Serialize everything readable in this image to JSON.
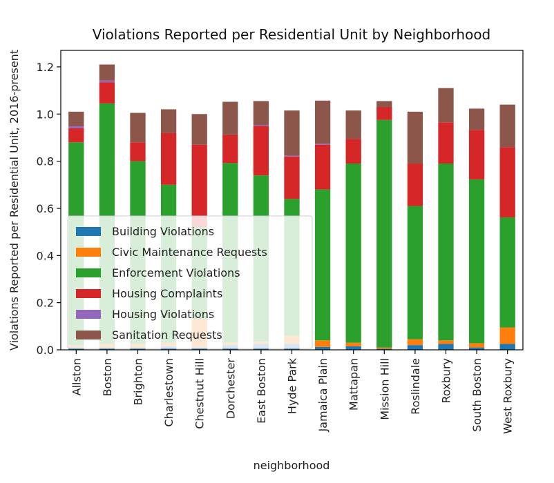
{
  "chart_data": {
    "type": "bar",
    "stacked": true,
    "title": "Violations Reported per Residential Unit by Neighborhood",
    "xlabel": "neighborhood",
    "ylabel": "Violations Reported per Residential Unit, 2016-present",
    "ylim": [
      0,
      1.27
    ],
    "yticks": [
      "0.0",
      "0.2",
      "0.4",
      "0.6",
      "0.8",
      "1.0",
      "1.2"
    ],
    "ytick_values": [
      0,
      0.2,
      0.4,
      0.6,
      0.8,
      1.0,
      1.2
    ],
    "grid": false,
    "legend_position": "lower-left",
    "categories": [
      "Allston",
      "Boston",
      "Brighton",
      "Charlestown",
      "Chestnut Hill",
      "Dorchester",
      "East Boston",
      "Hyde Park",
      "Jamaica Plain",
      "Mattapan",
      "Mission Hill",
      "Roslindale",
      "Roxbury",
      "South Boston",
      "West Roxbury"
    ],
    "series": [
      {
        "name": "Building Violations",
        "color": "#1f77b4",
        "values": [
          0.01,
          0.01,
          0.01,
          0.015,
          0.01,
          0.02,
          0.025,
          0.025,
          0.012,
          0.015,
          0.005,
          0.02,
          0.025,
          0.01,
          0.025
        ]
      },
      {
        "name": "Civic Maintenance Requests",
        "color": "#ff7f0e",
        "values": [
          0.01,
          0.015,
          0.015,
          0.015,
          0.12,
          0.01,
          0.01,
          0.035,
          0.028,
          0.015,
          0.005,
          0.025,
          0.015,
          0.018,
          0.07
        ]
      },
      {
        "name": "Enforcement Violations",
        "color": "#2ca02c",
        "values": [
          0.86,
          1.02,
          0.775,
          0.67,
          0.39,
          0.762,
          0.705,
          0.58,
          0.64,
          0.76,
          0.965,
          0.565,
          0.75,
          0.695,
          0.467
        ]
      },
      {
        "name": "Housing Complaints",
        "color": "#d62728",
        "values": [
          0.06,
          0.09,
          0.08,
          0.22,
          0.35,
          0.12,
          0.21,
          0.18,
          0.19,
          0.105,
          0.055,
          0.18,
          0.175,
          0.21,
          0.298
        ]
      },
      {
        "name": "Housing Violations",
        "color": "#9467bd",
        "values": [
          0.008,
          0.007,
          0.0,
          0.0,
          0.0,
          0.0,
          0.004,
          0.004,
          0.004,
          0.0,
          0.0,
          0.0,
          0.0,
          0.0,
          0.0
        ]
      },
      {
        "name": "Sanitation Requests",
        "color": "#8c564b",
        "values": [
          0.062,
          0.068,
          0.125,
          0.1,
          0.13,
          0.14,
          0.101,
          0.191,
          0.183,
          0.12,
          0.025,
          0.22,
          0.145,
          0.09,
          0.18
        ]
      }
    ]
  }
}
